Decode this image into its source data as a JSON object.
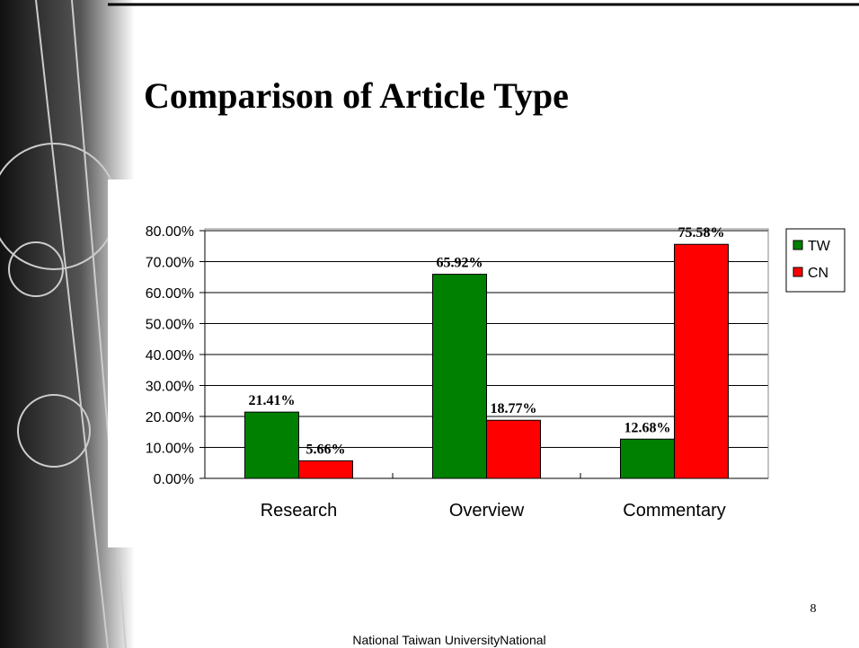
{
  "chart_data": {
    "type": "bar",
    "title": "Comparison of Article Type",
    "categories": [
      "Research",
      "Overview",
      "Commentary"
    ],
    "series": [
      {
        "name": "TW",
        "color": "#008000",
        "values": [
          21.41,
          65.92,
          12.68
        ],
        "value_labels": [
          "21.41%",
          "65.92%",
          "12.68%"
        ]
      },
      {
        "name": "CN",
        "color": "#ff0000",
        "values": [
          5.66,
          18.77,
          75.58
        ],
        "value_labels": [
          "5.66%",
          "18.77%",
          "75.58%"
        ]
      }
    ],
    "ylim": [
      0,
      80
    ],
    "yticks": [
      {
        "value": 0,
        "label": "0.00%"
      },
      {
        "value": 10,
        "label": "10.00%"
      },
      {
        "value": 20,
        "label": "20.00%"
      },
      {
        "value": 30,
        "label": "30.00%"
      },
      {
        "value": 40,
        "label": "40.00%"
      },
      {
        "value": 50,
        "label": "50.00%"
      },
      {
        "value": 60,
        "label": "60.00%"
      },
      {
        "value": 70,
        "label": "70.00%"
      },
      {
        "value": 80,
        "label": "80.00%"
      }
    ],
    "grid": true,
    "legend": "right"
  },
  "page_number": "8",
  "footer": "National Taiwan UniversityNational"
}
